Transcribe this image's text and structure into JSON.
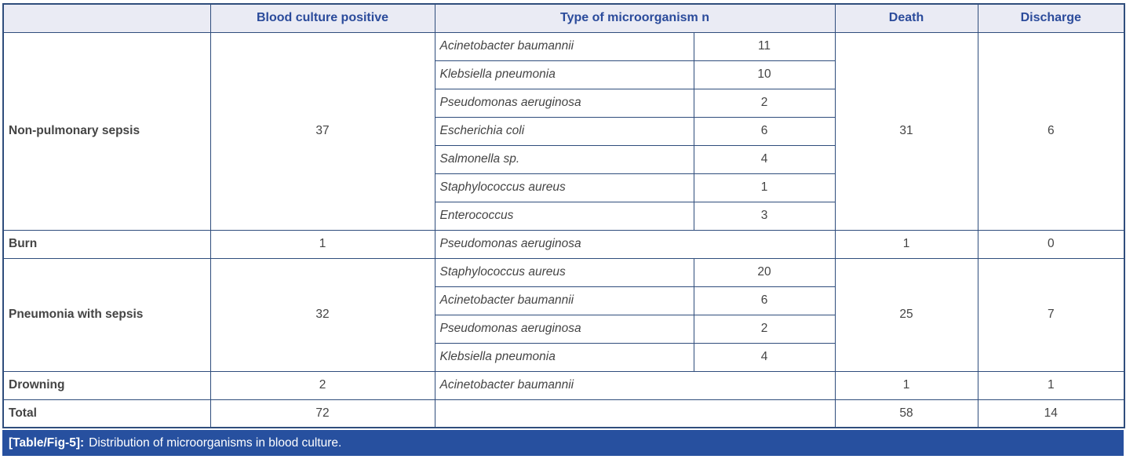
{
  "header": {
    "category": "",
    "blood_culture": "Blood culture positive",
    "microorganism": "Type of microorganism n",
    "death": "Death",
    "discharge": "Discharge"
  },
  "groups": [
    {
      "category": "Non-pulmonary sepsis",
      "blood_culture_positive": "37",
      "death": "31",
      "discharge": "6",
      "organisms": [
        {
          "name": "Acinetobacter baumannii",
          "n": "11"
        },
        {
          "name": "Klebsiella pneumonia",
          "n": "10"
        },
        {
          "name": "Pseudomonas aeruginosa",
          "n": "2"
        },
        {
          "name": "Escherichia coli",
          "n": "6"
        },
        {
          "name": "Salmonella sp.",
          "n": "4"
        },
        {
          "name": "Staphylococcus aureus",
          "n": "1"
        },
        {
          "name": "Enterococcus",
          "n": "3"
        }
      ]
    },
    {
      "category": "Burn",
      "blood_culture_positive": "1",
      "death": "1",
      "discharge": "0",
      "organisms": [
        {
          "name": "Pseudomonas aeruginosa",
          "n": ""
        }
      ]
    },
    {
      "category": "Pneumonia with sepsis",
      "blood_culture_positive": "32",
      "death": "25",
      "discharge": "7",
      "organisms": [
        {
          "name": "Staphylococcus aureus",
          "n": "20"
        },
        {
          "name": "Acinetobacter baumannii",
          "n": "6"
        },
        {
          "name": "Pseudomonas aeruginosa",
          "n": "2"
        },
        {
          "name": "Klebsiella pneumonia",
          "n": "4"
        }
      ]
    },
    {
      "category": "Drowning",
      "blood_culture_positive": "2",
      "death": "1",
      "discharge": "1",
      "organisms": [
        {
          "name": "Acinetobacter baumannii",
          "n": ""
        }
      ]
    }
  ],
  "total": {
    "category": "Total",
    "blood_culture_positive": "72",
    "microorganism": "",
    "death": "58",
    "discharge": "14"
  },
  "caption": {
    "label": "[Table/Fig-5]:",
    "text": "Distribution of microorganisms in blood culture."
  },
  "colors": {
    "header_bg": "#eaebf4",
    "header_text": "#2b4b9b",
    "border": "#2f4d7c",
    "caption_bg": "#27509f",
    "caption_text": "#ffffff",
    "body_text": "#444444"
  },
  "chart_data": {
    "type": "table",
    "title": "[Table/Fig-5]: Distribution of microorganisms in blood culture.",
    "columns": [
      "Category",
      "Blood culture positive",
      "Type of microorganism",
      "n",
      "Death",
      "Discharge"
    ],
    "rows": [
      [
        "Non-pulmonary sepsis",
        37,
        "Acinetobacter baumannii",
        11,
        31,
        6
      ],
      [
        "Non-pulmonary sepsis",
        37,
        "Klebsiella pneumonia",
        10,
        31,
        6
      ],
      [
        "Non-pulmonary sepsis",
        37,
        "Pseudomonas aeruginosa",
        2,
        31,
        6
      ],
      [
        "Non-pulmonary sepsis",
        37,
        "Escherichia coli",
        6,
        31,
        6
      ],
      [
        "Non-pulmonary sepsis",
        37,
        "Salmonella sp.",
        4,
        31,
        6
      ],
      [
        "Non-pulmonary sepsis",
        37,
        "Staphylococcus aureus",
        1,
        31,
        6
      ],
      [
        "Non-pulmonary sepsis",
        37,
        "Enterococcus",
        3,
        31,
        6
      ],
      [
        "Burn",
        1,
        "Pseudomonas aeruginosa",
        null,
        1,
        0
      ],
      [
        "Pneumonia with sepsis",
        32,
        "Staphylococcus aureus",
        20,
        25,
        7
      ],
      [
        "Pneumonia with sepsis",
        32,
        "Acinetobacter baumannii",
        6,
        25,
        7
      ],
      [
        "Pneumonia with sepsis",
        32,
        "Pseudomonas aeruginosa",
        2,
        25,
        7
      ],
      [
        "Pneumonia with sepsis",
        32,
        "Klebsiella pneumonia",
        4,
        25,
        7
      ],
      [
        "Drowning",
        2,
        "Acinetobacter baumannii",
        null,
        1,
        1
      ],
      [
        "Total",
        72,
        "",
        null,
        58,
        14
      ]
    ]
  }
}
